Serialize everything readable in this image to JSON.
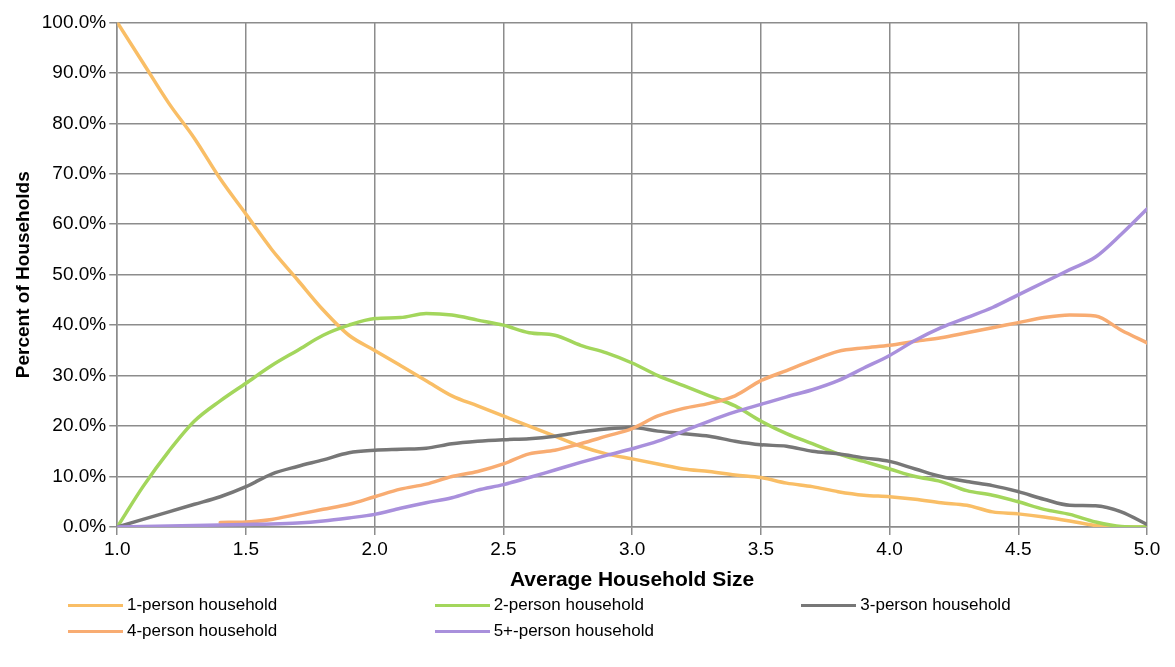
{
  "chart_data": {
    "type": "line",
    "xlabel": "Average Household Size",
    "ylabel": "Percent of Households",
    "x": [
      1.0,
      1.1,
      1.2,
      1.3,
      1.4,
      1.5,
      1.6,
      1.7,
      1.8,
      1.9,
      2.0,
      2.1,
      2.2,
      2.3,
      2.4,
      2.5,
      2.6,
      2.7,
      2.8,
      2.9,
      3.0,
      3.1,
      3.2,
      3.3,
      3.4,
      3.5,
      3.6,
      3.7,
      3.8,
      3.9,
      4.0,
      4.1,
      4.2,
      4.3,
      4.4,
      4.5,
      4.6,
      4.7,
      4.8,
      4.9,
      5.0
    ],
    "series": [
      {
        "name": "1-person household",
        "color": "#f9be66",
        "values": [
          100,
          92,
          84,
          77,
          69,
          62,
          55,
          49,
          43,
          38,
          35,
          32,
          29,
          26,
          24,
          22,
          20,
          18,
          16,
          14.5,
          13.5,
          12.5,
          11.5,
          11,
          10.3,
          9.8,
          8.7,
          8,
          7,
          6.3,
          6,
          5.5,
          4.8,
          4.3,
          3,
          2.6,
          2,
          1.2,
          0.3,
          0,
          0
        ]
      },
      {
        "name": "2-person household",
        "color": "#a3d65c",
        "values": [
          0,
          8,
          15,
          21,
          25,
          28.5,
          32,
          35,
          38,
          40,
          41.3,
          41.5,
          42.3,
          42,
          41,
          40,
          38.5,
          38,
          36,
          34.5,
          32.5,
          30,
          28,
          26,
          24,
          21,
          18.5,
          16.5,
          14.5,
          13,
          11.5,
          10,
          9,
          7.2,
          6.3,
          5,
          3.5,
          2.5,
          1,
          0.1,
          0
        ]
      },
      {
        "name": "3-person household",
        "color": "#777777",
        "values": [
          0,
          1.5,
          3,
          4.5,
          6,
          8,
          10.5,
          12,
          13.3,
          14.7,
          15.2,
          15.4,
          15.6,
          16.5,
          17,
          17.3,
          17.5,
          18,
          18.8,
          19.4,
          19.7,
          19,
          18.5,
          18,
          17,
          16.3,
          16,
          15,
          14.5,
          13.7,
          13,
          11.5,
          10,
          9,
          8.2,
          7,
          5.5,
          4.3,
          4.2,
          3,
          0.5
        ]
      },
      {
        "name": "4-person household",
        "color": "#f8ac72",
        "values": [
          null,
          null,
          null,
          null,
          0.9,
          1,
          1.5,
          2.5,
          3.5,
          4.5,
          6,
          7.5,
          8.5,
          10,
          11,
          12.5,
          14.5,
          15.2,
          16.5,
          18,
          19.5,
          22,
          23.5,
          24.5,
          26,
          29,
          31,
          33,
          34.8,
          35.5,
          36,
          36.8,
          37.5,
          38.5,
          39.5,
          40.5,
          41.5,
          42,
          41.8,
          39,
          36.5
        ]
      },
      {
        "name": "5+-person household",
        "color": "#a990dc",
        "values": [
          0,
          0.1,
          0.2,
          0.3,
          0.4,
          0.5,
          0.6,
          0.8,
          1.2,
          1.8,
          2.5,
          3.7,
          4.8,
          5.8,
          7.3,
          8.4,
          9.8,
          11.3,
          12.8,
          14.2,
          15.5,
          17,
          19,
          21,
          22.8,
          24.3,
          25.8,
          27.2,
          29,
          31.5,
          34,
          37,
          39.5,
          41.5,
          43.5,
          46,
          48.5,
          51,
          53.5,
          58,
          63
        ]
      }
    ],
    "xlim": [
      1.0,
      5.0
    ],
    "xticks": [
      {
        "value": 1.0,
        "label": "1.0"
      },
      {
        "value": 1.5,
        "label": "1.5"
      },
      {
        "value": 2.0,
        "label": "2.0"
      },
      {
        "value": 2.5,
        "label": "2.5"
      },
      {
        "value": 3.0,
        "label": "3.0"
      },
      {
        "value": 3.5,
        "label": "3.5"
      },
      {
        "value": 4.0,
        "label": "4.0"
      },
      {
        "value": 4.5,
        "label": "4.5"
      },
      {
        "value": 5.0,
        "label": "5.0"
      }
    ],
    "ylim": [
      0,
      100
    ],
    "yticks": [
      {
        "value": 0,
        "label": "0.0%"
      },
      {
        "value": 10,
        "label": "10.0%"
      },
      {
        "value": 20,
        "label": "20.0%"
      },
      {
        "value": 30,
        "label": "30.0%"
      },
      {
        "value": 40,
        "label": "40.0%"
      },
      {
        "value": 50,
        "label": "50.0%"
      },
      {
        "value": 60,
        "label": "60.0%"
      },
      {
        "value": 70,
        "label": "70.0%"
      },
      {
        "value": 80,
        "label": "80.0%"
      },
      {
        "value": 90,
        "label": "90.0%"
      },
      {
        "value": 100,
        "label": "100.0%"
      }
    ],
    "grid": true,
    "legend": "bottom",
    "marker": "none",
    "line_style": "solid"
  }
}
